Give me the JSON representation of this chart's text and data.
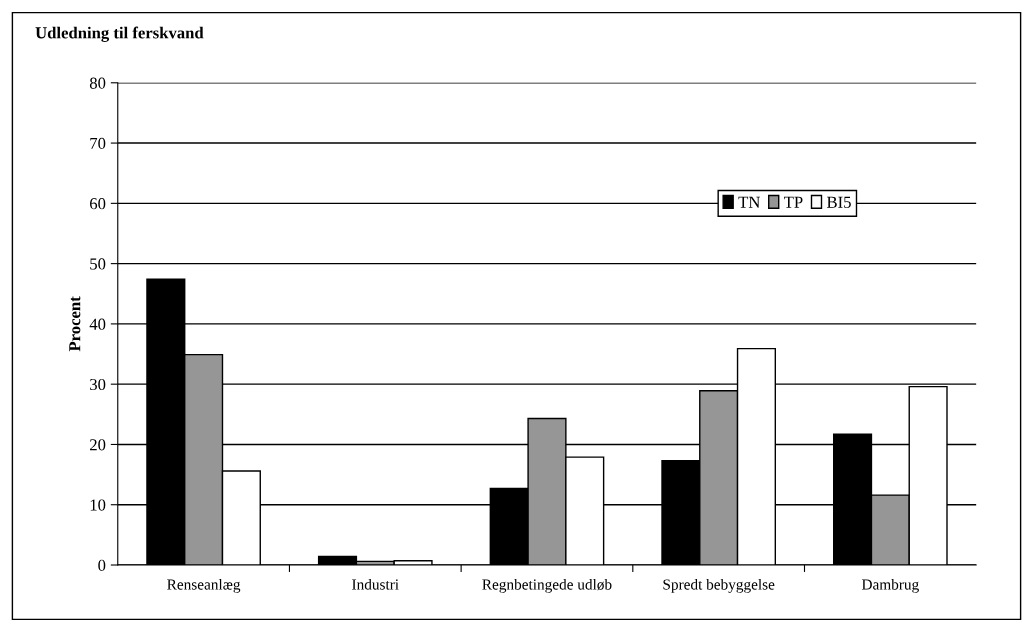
{
  "chart_data": {
    "type": "bar",
    "title": "Udledning til ferskvand",
    "ylabel": "Procent",
    "categories": [
      "Renseanlæg",
      "Industri",
      "Regnbetingede udløb",
      "Spredt bebyggelse",
      "Dambrug"
    ],
    "series": [
      {
        "name": "TN",
        "color": "#000000",
        "values": [
          47.4,
          1.4,
          12.7,
          17.3,
          21.7
        ]
      },
      {
        "name": "TP",
        "color": "#969696",
        "values": [
          34.9,
          0.6,
          24.3,
          28.9,
          11.6
        ]
      },
      {
        "name": "BI5",
        "color": "#ffffff",
        "values": [
          15.6,
          0.7,
          17.9,
          35.9,
          29.6
        ]
      }
    ],
    "ylim": [
      0,
      80
    ],
    "yticks": [
      0,
      10,
      20,
      30,
      40,
      50,
      60,
      70,
      80
    ],
    "grid": "y",
    "legend": "right"
  }
}
